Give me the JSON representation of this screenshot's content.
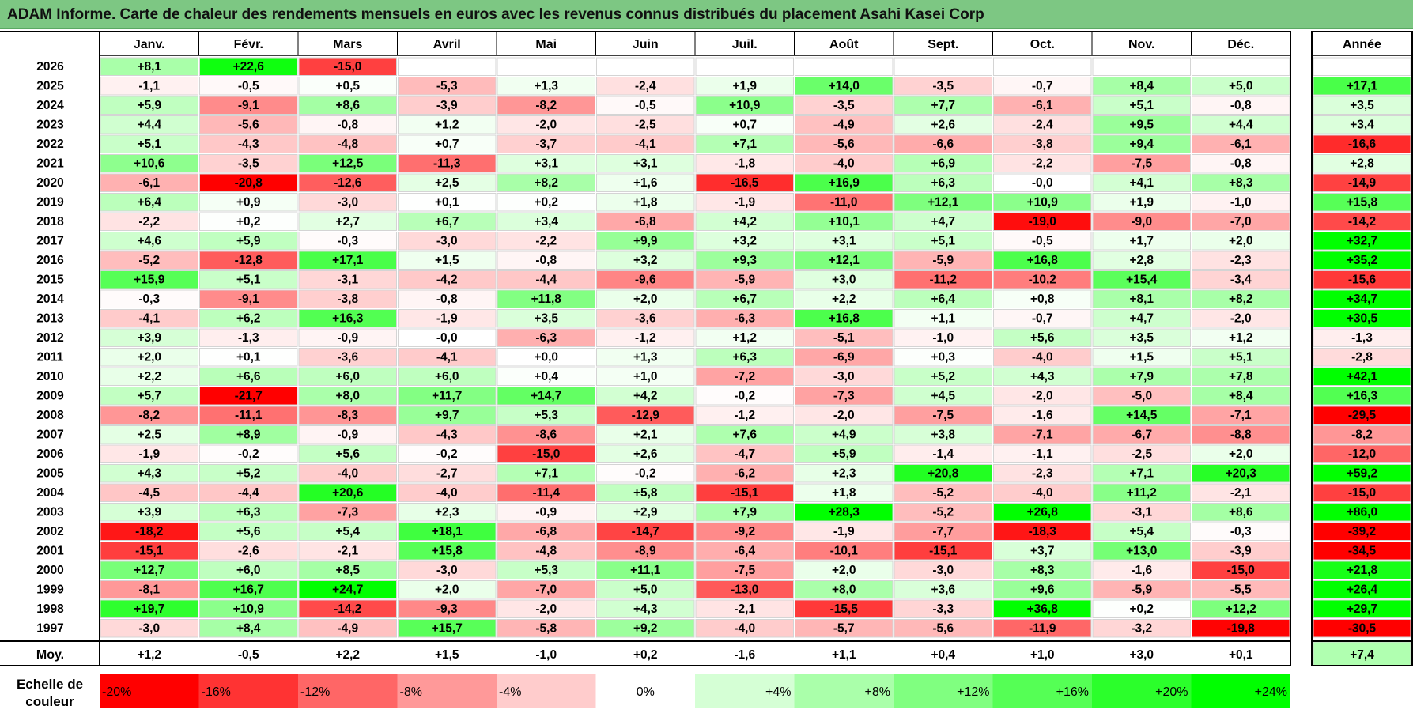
{
  "title": "ADAM Informe. Carte de chaleur des rendements mensuels en euros avec les revenus connus distribués du placement Asahi Kasei Corp",
  "chart_data": {
    "type": "heatmap",
    "title": "ADAM Informe. Carte de chaleur des rendements mensuels en euros avec les revenus connus distribués du placement Asahi Kasei Corp",
    "months": [
      "Janv.",
      "Févr.",
      "Mars",
      "Avril",
      "Mai",
      "Juin",
      "Juil.",
      "Août",
      "Sept.",
      "Oct.",
      "Nov.",
      "Déc."
    ],
    "year_header": "Année",
    "rows": [
      {
        "year": "2026",
        "values": [
          "+8,1",
          "+22,6",
          "-15,0",
          "",
          "",
          "",
          "",
          "",
          "",
          "",
          "",
          ""
        ],
        "annual": ""
      },
      {
        "year": "2025",
        "values": [
          "-1,1",
          "-0,5",
          "+0,5",
          "-5,3",
          "+1,3",
          "-2,4",
          "+1,9",
          "+14,0",
          "-3,5",
          "-0,7",
          "+8,4",
          "+5,0"
        ],
        "annual": "+17,1"
      },
      {
        "year": "2024",
        "values": [
          "+5,9",
          "-9,1",
          "+8,6",
          "-3,9",
          "-8,2",
          "-0,5",
          "+10,9",
          "-3,5",
          "+7,7",
          "-6,1",
          "+5,1",
          "-0,8"
        ],
        "annual": "+3,5"
      },
      {
        "year": "2023",
        "values": [
          "+4,4",
          "-5,6",
          "-0,8",
          "+1,2",
          "-2,0",
          "-2,5",
          "+0,7",
          "-4,9",
          "+2,6",
          "-2,4",
          "+9,5",
          "+4,4"
        ],
        "annual": "+3,4"
      },
      {
        "year": "2022",
        "values": [
          "+5,1",
          "-4,3",
          "-4,8",
          "+0,7",
          "-3,7",
          "-4,1",
          "+7,1",
          "-5,6",
          "-6,6",
          "-3,8",
          "+9,4",
          "-6,1"
        ],
        "annual": "-16,6"
      },
      {
        "year": "2021",
        "values": [
          "+10,6",
          "-3,5",
          "+12,5",
          "-11,3",
          "+3,1",
          "+3,1",
          "-1,8",
          "-4,0",
          "+6,9",
          "-2,2",
          "-7,5",
          "-0,8"
        ],
        "annual": "+2,8"
      },
      {
        "year": "2020",
        "values": [
          "-6,1",
          "-20,8",
          "-12,6",
          "+2,5",
          "+8,2",
          "+1,6",
          "-16,5",
          "+16,9",
          "+6,3",
          "-0,0",
          "+4,1",
          "+8,3"
        ],
        "annual": "-14,9"
      },
      {
        "year": "2019",
        "values": [
          "+6,4",
          "+0,9",
          "-3,0",
          "+0,1",
          "+0,2",
          "+1,8",
          "-1,9",
          "-11,0",
          "+12,1",
          "+10,9",
          "+1,9",
          "-1,0"
        ],
        "annual": "+15,8"
      },
      {
        "year": "2018",
        "values": [
          "-2,2",
          "+0,2",
          "+2,7",
          "+6,7",
          "+3,4",
          "-6,8",
          "+4,2",
          "+10,1",
          "+4,7",
          "-19,0",
          "-9,0",
          "-7,0"
        ],
        "annual": "-14,2"
      },
      {
        "year": "2017",
        "values": [
          "+4,6",
          "+5,9",
          "-0,3",
          "-3,0",
          "-2,2",
          "+9,9",
          "+3,2",
          "+3,1",
          "+5,1",
          "-0,5",
          "+1,7",
          "+2,0"
        ],
        "annual": "+32,7"
      },
      {
        "year": "2016",
        "values": [
          "-5,2",
          "-12,8",
          "+17,1",
          "+1,5",
          "-0,8",
          "+3,2",
          "+9,3",
          "+12,1",
          "-5,9",
          "+16,8",
          "+2,8",
          "-2,3"
        ],
        "annual": "+35,2"
      },
      {
        "year": "2015",
        "values": [
          "+15,9",
          "+5,1",
          "-3,1",
          "-4,2",
          "-4,4",
          "-9,6",
          "-5,9",
          "+3,0",
          "-11,2",
          "-10,2",
          "+15,4",
          "-3,4"
        ],
        "annual": "-15,6"
      },
      {
        "year": "2014",
        "values": [
          "-0,3",
          "-9,1",
          "-3,8",
          "-0,8",
          "+11,8",
          "+2,0",
          "+6,7",
          "+2,2",
          "+6,4",
          "+0,8",
          "+8,1",
          "+8,2"
        ],
        "annual": "+34,7"
      },
      {
        "year": "2013",
        "values": [
          "-4,1",
          "+6,2",
          "+16,3",
          "-1,9",
          "+3,5",
          "-3,6",
          "-6,3",
          "+16,8",
          "+1,1",
          "-0,7",
          "+4,7",
          "-2,0"
        ],
        "annual": "+30,5"
      },
      {
        "year": "2012",
        "values": [
          "+3,9",
          "-1,3",
          "-0,9",
          "-0,0",
          "-6,3",
          "-1,2",
          "+1,2",
          "-5,1",
          "-1,0",
          "+5,6",
          "+3,5",
          "+1,2"
        ],
        "annual": "-1,3"
      },
      {
        "year": "2011",
        "values": [
          "+2,0",
          "+0,1",
          "-3,6",
          "-4,1",
          "+0,0",
          "+1,3",
          "+6,3",
          "-6,9",
          "+0,3",
          "-4,0",
          "+1,5",
          "+5,1"
        ],
        "annual": "-2,8"
      },
      {
        "year": "2010",
        "values": [
          "+2,2",
          "+6,6",
          "+6,0",
          "+6,0",
          "+0,4",
          "+1,0",
          "-7,2",
          "-3,0",
          "+5,2",
          "+4,3",
          "+7,9",
          "+7,8"
        ],
        "annual": "+42,1"
      },
      {
        "year": "2009",
        "values": [
          "+5,7",
          "-21,7",
          "+8,0",
          "+11,7",
          "+14,7",
          "+4,2",
          "-0,2",
          "-7,3",
          "+4,5",
          "-2,0",
          "-5,0",
          "+8,4"
        ],
        "annual": "+16,3"
      },
      {
        "year": "2008",
        "values": [
          "-8,2",
          "-11,1",
          "-8,3",
          "+9,7",
          "+5,3",
          "-12,9",
          "-1,2",
          "-2,0",
          "-7,5",
          "-1,6",
          "+14,5",
          "-7,1"
        ],
        "annual": "-29,5"
      },
      {
        "year": "2007",
        "values": [
          "+2,5",
          "+8,9",
          "-0,9",
          "-4,3",
          "-8,6",
          "+2,1",
          "+7,6",
          "+4,9",
          "+3,8",
          "-7,1",
          "-6,7",
          "-8,8"
        ],
        "annual": "-8,2"
      },
      {
        "year": "2006",
        "values": [
          "-1,9",
          "-0,2",
          "+5,6",
          "-0,2",
          "-15,0",
          "+2,6",
          "-4,7",
          "+5,9",
          "-1,4",
          "-1,1",
          "-2,5",
          "+2,0"
        ],
        "annual": "-12,0"
      },
      {
        "year": "2005",
        "values": [
          "+4,3",
          "+5,2",
          "-4,0",
          "-2,7",
          "+7,1",
          "-0,2",
          "-6,2",
          "+2,3",
          "+20,8",
          "-2,3",
          "+7,1",
          "+20,3"
        ],
        "annual": "+59,2"
      },
      {
        "year": "2004",
        "values": [
          "-4,5",
          "-4,4",
          "+20,6",
          "-4,0",
          "-11,4",
          "+5,8",
          "-15,1",
          "+1,8",
          "-5,2",
          "-4,0",
          "+11,2",
          "-2,1"
        ],
        "annual": "-15,0"
      },
      {
        "year": "2003",
        "values": [
          "+3,9",
          "+6,3",
          "-7,3",
          "+2,3",
          "-0,9",
          "+2,9",
          "+7,9",
          "+28,3",
          "-5,2",
          "+26,8",
          "-3,1",
          "+8,6"
        ],
        "annual": "+86,0"
      },
      {
        "year": "2002",
        "values": [
          "-18,2",
          "+5,6",
          "+5,4",
          "+18,1",
          "-6,8",
          "-14,7",
          "-9,2",
          "-1,9",
          "-7,7",
          "-18,3",
          "+5,4",
          "-0,3"
        ],
        "annual": "-39,2"
      },
      {
        "year": "2001",
        "values": [
          "-15,1",
          "-2,6",
          "-2,1",
          "+15,8",
          "-4,8",
          "-8,9",
          "-6,4",
          "-10,1",
          "-15,1",
          "+3,7",
          "+13,0",
          "-3,9"
        ],
        "annual": "-34,5"
      },
      {
        "year": "2000",
        "values": [
          "+12,7",
          "+6,0",
          "+8,5",
          "-3,0",
          "+5,3",
          "+11,1",
          "-7,5",
          "+2,0",
          "-3,0",
          "+8,3",
          "-1,6",
          "-15,0"
        ],
        "annual": "+21,8"
      },
      {
        "year": "1999",
        "values": [
          "-8,1",
          "+16,7",
          "+24,7",
          "+2,0",
          "-7,0",
          "+5,0",
          "-13,0",
          "+8,0",
          "+3,6",
          "+9,6",
          "-5,9",
          "-5,5"
        ],
        "annual": "+26,4"
      },
      {
        "year": "1998",
        "values": [
          "+19,7",
          "+10,9",
          "-14,2",
          "-9,3",
          "-2,0",
          "+4,3",
          "-2,1",
          "-15,5",
          "-3,3",
          "+36,8",
          "+0,2",
          "+12,2"
        ],
        "annual": "+29,7"
      },
      {
        "year": "1997",
        "values": [
          "-3,0",
          "+8,4",
          "-4,9",
          "+15,7",
          "-5,8",
          "+9,2",
          "-4,0",
          "-5,7",
          "-5,6",
          "-11,9",
          "-3,2",
          "-19,8"
        ],
        "annual": "-30,5"
      }
    ],
    "average": {
      "label": "Moy.",
      "values": [
        "+1,2",
        "-0,5",
        "+2,2",
        "+1,5",
        "-1,0",
        "+0,2",
        "-1,6",
        "+1,1",
        "+0,4",
        "+1,0",
        "+3,0",
        "+0,1"
      ],
      "annual": "+7,4"
    },
    "scale": {
      "label": "Echelle de couleur",
      "values": [
        "-20%",
        "-16%",
        "-12%",
        "-8%",
        "-4%",
        "0%",
        "+4%",
        "+8%",
        "+12%",
        "+16%",
        "+20%",
        "+24%"
      ]
    }
  }
}
